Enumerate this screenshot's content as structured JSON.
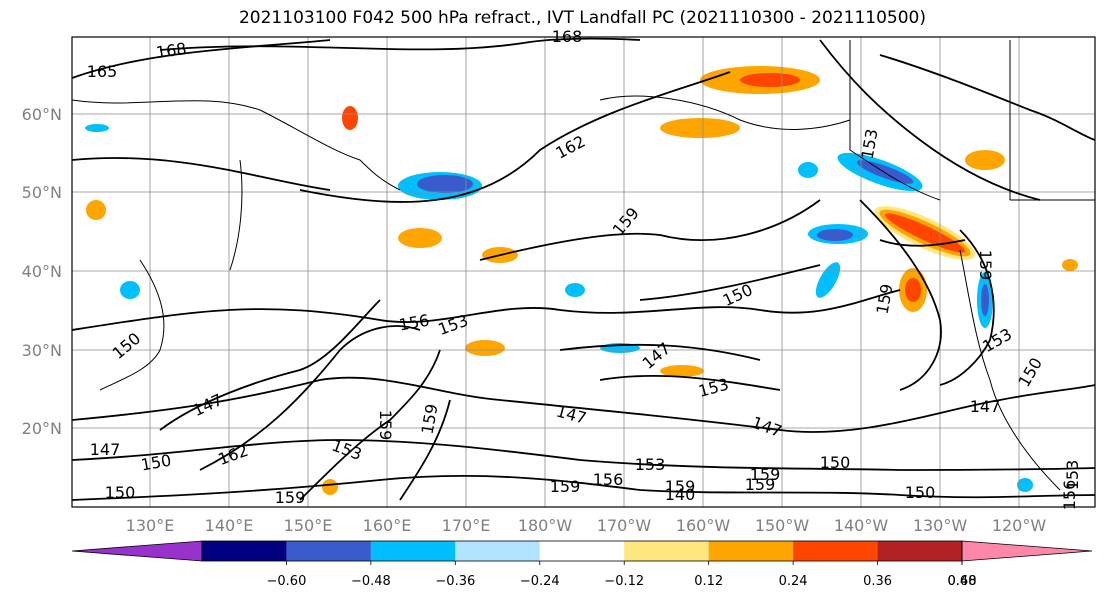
{
  "title": "2021103100 F042 500 hPa refract., IVT Landfall PC (2021110300 - 2021110500)",
  "map": {
    "lat_labels": [
      "60°N",
      "50°N",
      "40°N",
      "30°N",
      "20°N"
    ],
    "lon_labels": [
      "130°E",
      "140°E",
      "150°E",
      "160°E",
      "170°E",
      "180°W",
      "170°W",
      "160°W",
      "150°W",
      "140°W",
      "130°W",
      "120°W"
    ],
    "contour_labels": [
      "168",
      "165",
      "168",
      "162",
      "159",
      "153",
      "150",
      "159",
      "156",
      "153",
      "147",
      "147",
      "147",
      "150",
      "162",
      "153",
      "159",
      "159",
      "153",
      "147",
      "153",
      "147",
      "150",
      "159",
      "150",
      "159",
      "150",
      "147",
      "150",
      "159",
      "156",
      "159",
      "153",
      "150",
      "159",
      "140",
      "159",
      "156",
      "153"
    ],
    "colors": {
      "land_line": "#000000",
      "grid": "#8c8c8c",
      "axis_label": "#808080"
    }
  },
  "colorbar": {
    "tick_labels": [
      "−0.60",
      "−0.48",
      "−0.36",
      "−0.24",
      "−0.12",
      "0.12",
      "0.24",
      "0.36",
      "0.48",
      "0.60"
    ],
    "bins": [
      "#9932cc",
      "#000080",
      "#3a5bcb",
      "#00bfff",
      "#b3e4ff",
      "#ffffff",
      "#ffe77f",
      "#ffa500",
      "#ff4500",
      "#b22222",
      "#ff88aa"
    ]
  }
}
